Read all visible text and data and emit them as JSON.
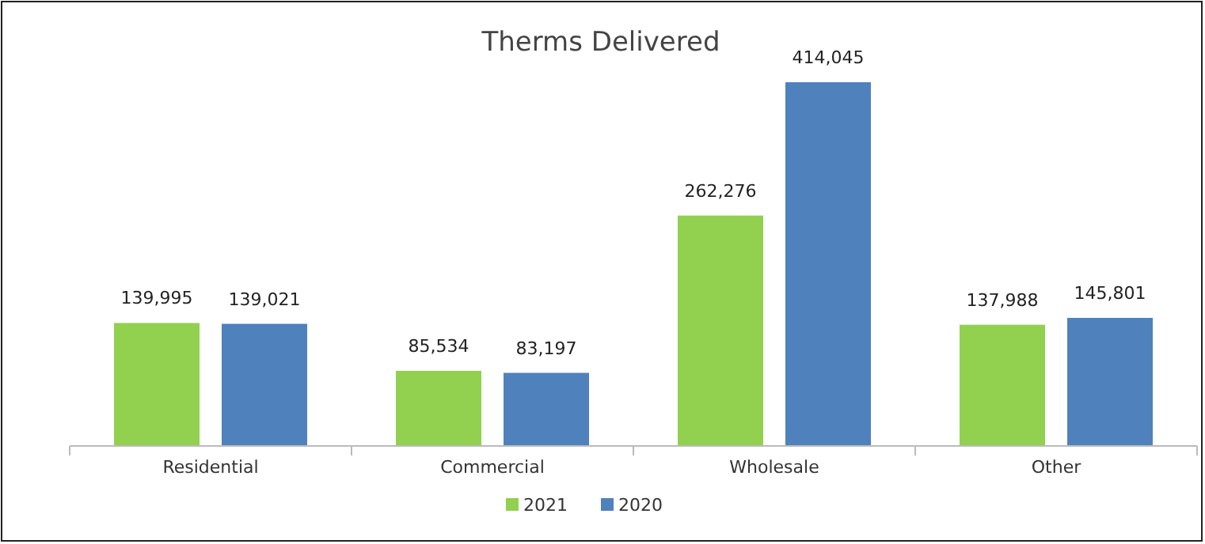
{
  "chart_data": {
    "type": "bar",
    "title": "Therms Delivered",
    "categories": [
      "Residential",
      "Commercial",
      "Wholesale",
      "Other"
    ],
    "series": [
      {
        "name": "2021",
        "color": "#92d050",
        "values": [
          139995,
          85534,
          262276,
          137988
        ],
        "value_labels": [
          "139,995",
          "85,534",
          "262,276",
          "137,988"
        ]
      },
      {
        "name": "2020",
        "color": "#4f81bd",
        "values": [
          139021,
          83197,
          414045,
          145801
        ],
        "value_labels": [
          "139,021",
          "83,197",
          "414,045",
          "145,801"
        ]
      }
    ],
    "legend": "bottom"
  }
}
